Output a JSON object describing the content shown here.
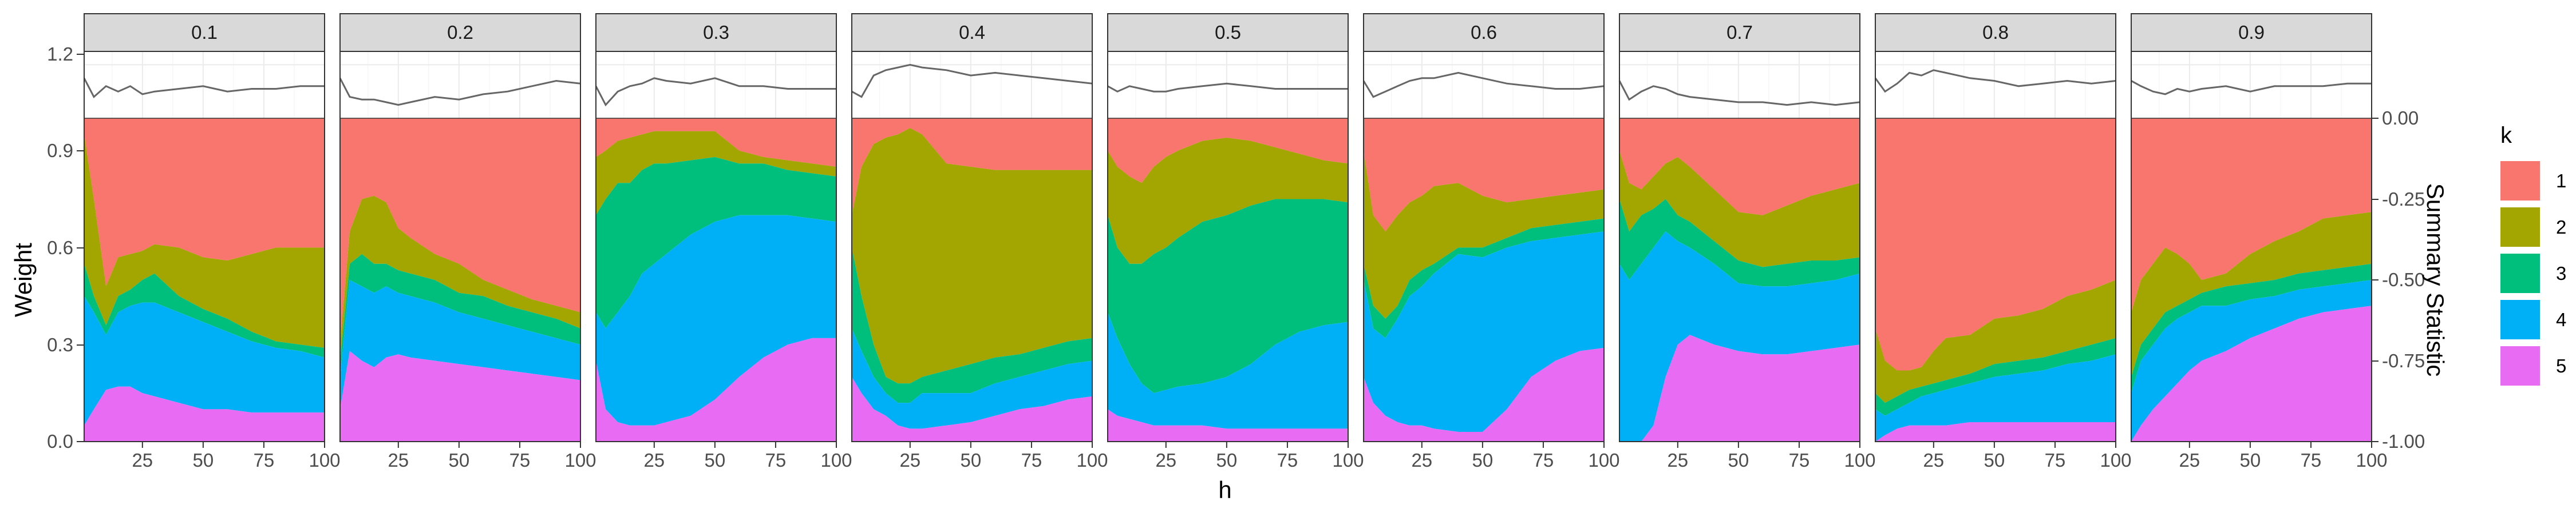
{
  "chart_data": {
    "type": "area",
    "facet_var_labels": [
      "0.1",
      "0.2",
      "0.3",
      "0.4",
      "0.5",
      "0.6",
      "0.7",
      "0.8",
      "0.9"
    ],
    "xlabel": "h",
    "ylabel": "Weight",
    "ylabel_right": "Summary Statistic",
    "xlim": [
      1,
      100
    ],
    "x_ticks": [
      25,
      50,
      75,
      100
    ],
    "y_left_ticks": [
      "0.0",
      "0.3",
      "0.6",
      "0.9",
      "1.2"
    ],
    "y_right_ticks": [
      "0.00",
      "-0.25",
      "-0.50",
      "-0.75",
      "-1.00"
    ],
    "legend": {
      "title": "k",
      "position": "right",
      "entries": [
        {
          "label": "1",
          "color": "#F8766D"
        },
        {
          "label": "2",
          "color": "#A3A500"
        },
        {
          "label": "3",
          "color": "#00BF7D"
        },
        {
          "label": "4",
          "color": "#00B0F6"
        },
        {
          "label": "5",
          "color": "#E76BF3"
        }
      ]
    },
    "stack_colors": [
      "#E76BF3",
      "#00B0F6",
      "#00BF7D",
      "#A3A500",
      "#F8766D"
    ],
    "line_color": "#666666",
    "x_sample": [
      1,
      5,
      10,
      15,
      20,
      25,
      30,
      40,
      50,
      60,
      70,
      80,
      90,
      100
    ],
    "summary_x": [
      1,
      5,
      10,
      15,
      20,
      25,
      30,
      40,
      50,
      60,
      70,
      80,
      90,
      100
    ],
    "panels": [
      {
        "label": "0.1",
        "bounds": {
          "b5": [
            0.05,
            0.1,
            0.16,
            0.17,
            0.17,
            0.15,
            0.14,
            0.12,
            0.1,
            0.1,
            0.09,
            0.09,
            0.09,
            0.09
          ],
          "b4": [
            0.45,
            0.4,
            0.33,
            0.4,
            0.42,
            0.43,
            0.43,
            0.4,
            0.37,
            0.34,
            0.31,
            0.29,
            0.28,
            0.26
          ],
          "b3": [
            0.55,
            0.45,
            0.36,
            0.45,
            0.47,
            0.5,
            0.52,
            0.45,
            0.41,
            0.38,
            0.34,
            0.31,
            0.3,
            0.29
          ],
          "b2": [
            0.95,
            0.75,
            0.48,
            0.57,
            0.58,
            0.59,
            0.61,
            0.6,
            0.57,
            0.56,
            0.58,
            0.6,
            0.6,
            0.6
          ]
        },
        "summary": [
          1.15,
          1.08,
          1.12,
          1.1,
          1.12,
          1.09,
          1.1,
          1.11,
          1.12,
          1.1,
          1.11,
          1.11,
          1.12,
          1.12
        ]
      },
      {
        "label": "0.2",
        "bounds": {
          "b5": [
            0.1,
            0.28,
            0.25,
            0.23,
            0.26,
            0.27,
            0.26,
            0.25,
            0.24,
            0.23,
            0.22,
            0.21,
            0.2,
            0.19
          ],
          "b4": [
            0.2,
            0.5,
            0.48,
            0.46,
            0.48,
            0.46,
            0.45,
            0.43,
            0.4,
            0.38,
            0.36,
            0.34,
            0.32,
            0.3
          ],
          "b3": [
            0.25,
            0.55,
            0.58,
            0.55,
            0.55,
            0.53,
            0.52,
            0.5,
            0.46,
            0.45,
            0.42,
            0.4,
            0.38,
            0.35
          ],
          "b2": [
            0.3,
            0.65,
            0.75,
            0.76,
            0.74,
            0.66,
            0.63,
            0.58,
            0.55,
            0.5,
            0.47,
            0.44,
            0.42,
            0.4
          ]
        },
        "summary": [
          1.15,
          1.08,
          1.07,
          1.07,
          1.06,
          1.05,
          1.06,
          1.08,
          1.07,
          1.09,
          1.1,
          1.12,
          1.14,
          1.13
        ]
      },
      {
        "label": "0.3",
        "bounds": {
          "b5": [
            0.25,
            0.1,
            0.06,
            0.05,
            0.05,
            0.05,
            0.06,
            0.08,
            0.13,
            0.2,
            0.26,
            0.3,
            0.32,
            0.32
          ],
          "b4": [
            0.4,
            0.35,
            0.4,
            0.45,
            0.52,
            0.55,
            0.58,
            0.64,
            0.68,
            0.7,
            0.7,
            0.7,
            0.69,
            0.68
          ],
          "b3": [
            0.7,
            0.75,
            0.8,
            0.8,
            0.84,
            0.86,
            0.86,
            0.87,
            0.88,
            0.86,
            0.86,
            0.84,
            0.83,
            0.82
          ],
          "b2": [
            0.88,
            0.9,
            0.93,
            0.94,
            0.95,
            0.96,
            0.96,
            0.96,
            0.96,
            0.9,
            0.88,
            0.87,
            0.86,
            0.85
          ]
        },
        "summary": [
          1.12,
          1.05,
          1.1,
          1.12,
          1.13,
          1.15,
          1.14,
          1.13,
          1.15,
          1.12,
          1.12,
          1.11,
          1.11,
          1.11
        ]
      },
      {
        "label": "0.4",
        "bounds": {
          "b5": [
            0.2,
            0.15,
            0.1,
            0.08,
            0.05,
            0.04,
            0.04,
            0.05,
            0.06,
            0.08,
            0.1,
            0.11,
            0.13,
            0.14
          ],
          "b4": [
            0.35,
            0.28,
            0.2,
            0.15,
            0.12,
            0.12,
            0.15,
            0.15,
            0.15,
            0.18,
            0.2,
            0.22,
            0.24,
            0.25
          ],
          "b3": [
            0.6,
            0.45,
            0.3,
            0.2,
            0.18,
            0.18,
            0.2,
            0.22,
            0.24,
            0.26,
            0.27,
            0.29,
            0.31,
            0.32
          ],
          "b2": [
            0.7,
            0.85,
            0.92,
            0.94,
            0.95,
            0.97,
            0.95,
            0.86,
            0.85,
            0.84,
            0.84,
            0.84,
            0.84,
            0.84
          ]
        },
        "summary": [
          1.1,
          1.08,
          1.16,
          1.18,
          1.19,
          1.2,
          1.19,
          1.18,
          1.16,
          1.17,
          1.16,
          1.15,
          1.14,
          1.13
        ]
      },
      {
        "label": "0.5",
        "bounds": {
          "b5": [
            0.1,
            0.08,
            0.07,
            0.06,
            0.05,
            0.05,
            0.05,
            0.05,
            0.04,
            0.04,
            0.04,
            0.04,
            0.04,
            0.04
          ],
          "b4": [
            0.4,
            0.32,
            0.24,
            0.18,
            0.15,
            0.16,
            0.17,
            0.18,
            0.2,
            0.24,
            0.3,
            0.34,
            0.36,
            0.37
          ],
          "b3": [
            0.7,
            0.6,
            0.55,
            0.55,
            0.58,
            0.6,
            0.63,
            0.68,
            0.7,
            0.73,
            0.75,
            0.75,
            0.75,
            0.74
          ],
          "b2": [
            0.9,
            0.85,
            0.82,
            0.8,
            0.85,
            0.88,
            0.9,
            0.93,
            0.94,
            0.93,
            0.91,
            0.89,
            0.87,
            0.86
          ]
        },
        "summary": [
          1.12,
          1.1,
          1.12,
          1.11,
          1.1,
          1.1,
          1.11,
          1.12,
          1.13,
          1.12,
          1.11,
          1.11,
          1.11,
          1.11
        ]
      },
      {
        "label": "0.6",
        "bounds": {
          "b5": [
            0.2,
            0.12,
            0.08,
            0.06,
            0.05,
            0.05,
            0.04,
            0.03,
            0.03,
            0.1,
            0.2,
            0.25,
            0.28,
            0.29
          ],
          "b4": [
            0.5,
            0.35,
            0.32,
            0.38,
            0.45,
            0.48,
            0.52,
            0.58,
            0.57,
            0.6,
            0.62,
            0.63,
            0.64,
            0.65
          ],
          "b3": [
            0.55,
            0.42,
            0.38,
            0.42,
            0.5,
            0.53,
            0.55,
            0.6,
            0.6,
            0.63,
            0.66,
            0.67,
            0.68,
            0.69
          ],
          "b2": [
            0.9,
            0.7,
            0.65,
            0.7,
            0.74,
            0.76,
            0.79,
            0.8,
            0.76,
            0.74,
            0.75,
            0.76,
            0.77,
            0.78
          ]
        },
        "summary": [
          1.14,
          1.08,
          1.1,
          1.12,
          1.14,
          1.15,
          1.15,
          1.17,
          1.15,
          1.13,
          1.12,
          1.11,
          1.11,
          1.12
        ]
      },
      {
        "label": "0.7",
        "bounds": {
          "b5": [
            0.0,
            0.0,
            0.0,
            0.05,
            0.2,
            0.3,
            0.33,
            0.3,
            0.28,
            0.27,
            0.27,
            0.28,
            0.29,
            0.3
          ],
          "b4": [
            0.55,
            0.5,
            0.55,
            0.6,
            0.65,
            0.62,
            0.6,
            0.55,
            0.49,
            0.48,
            0.48,
            0.49,
            0.5,
            0.52
          ],
          "b3": [
            0.75,
            0.65,
            0.7,
            0.72,
            0.75,
            0.7,
            0.68,
            0.62,
            0.56,
            0.54,
            0.55,
            0.56,
            0.56,
            0.57
          ],
          "b2": [
            0.9,
            0.8,
            0.78,
            0.82,
            0.86,
            0.88,
            0.85,
            0.78,
            0.71,
            0.7,
            0.73,
            0.76,
            0.78,
            0.8
          ]
        },
        "summary": [
          1.14,
          1.07,
          1.1,
          1.12,
          1.11,
          1.09,
          1.08,
          1.07,
          1.06,
          1.06,
          1.05,
          1.06,
          1.05,
          1.06
        ]
      },
      {
        "label": "0.8",
        "bounds": {
          "b5": [
            0.0,
            0.02,
            0.04,
            0.05,
            0.05,
            0.05,
            0.05,
            0.06,
            0.06,
            0.06,
            0.06,
            0.06,
            0.06,
            0.06
          ],
          "b4": [
            0.1,
            0.08,
            0.1,
            0.12,
            0.14,
            0.15,
            0.16,
            0.18,
            0.2,
            0.21,
            0.22,
            0.24,
            0.25,
            0.27
          ],
          "b3": [
            0.15,
            0.12,
            0.14,
            0.16,
            0.17,
            0.18,
            0.19,
            0.21,
            0.24,
            0.25,
            0.26,
            0.28,
            0.3,
            0.32
          ],
          "b2": [
            0.35,
            0.25,
            0.22,
            0.22,
            0.23,
            0.28,
            0.32,
            0.33,
            0.38,
            0.39,
            0.41,
            0.45,
            0.47,
            0.5
          ]
        },
        "summary": [
          1.15,
          1.1,
          1.13,
          1.17,
          1.16,
          1.18,
          1.17,
          1.15,
          1.14,
          1.12,
          1.13,
          1.14,
          1.13,
          1.14
        ]
      },
      {
        "label": "0.9",
        "bounds": {
          "b5": [
            0.0,
            0.05,
            0.1,
            0.14,
            0.18,
            0.22,
            0.25,
            0.28,
            0.32,
            0.35,
            0.38,
            0.4,
            0.41,
            0.42
          ],
          "b4": [
            0.15,
            0.25,
            0.3,
            0.35,
            0.38,
            0.4,
            0.42,
            0.42,
            0.44,
            0.45,
            0.47,
            0.48,
            0.49,
            0.5
          ],
          "b3": [
            0.2,
            0.3,
            0.35,
            0.4,
            0.42,
            0.44,
            0.46,
            0.48,
            0.49,
            0.5,
            0.52,
            0.53,
            0.54,
            0.55
          ],
          "b2": [
            0.4,
            0.5,
            0.55,
            0.6,
            0.58,
            0.55,
            0.5,
            0.52,
            0.58,
            0.62,
            0.65,
            0.69,
            0.7,
            0.71
          ]
        },
        "summary": [
          1.14,
          1.12,
          1.1,
          1.09,
          1.11,
          1.1,
          1.11,
          1.12,
          1.1,
          1.12,
          1.12,
          1.12,
          1.13,
          1.13
        ]
      }
    ]
  }
}
